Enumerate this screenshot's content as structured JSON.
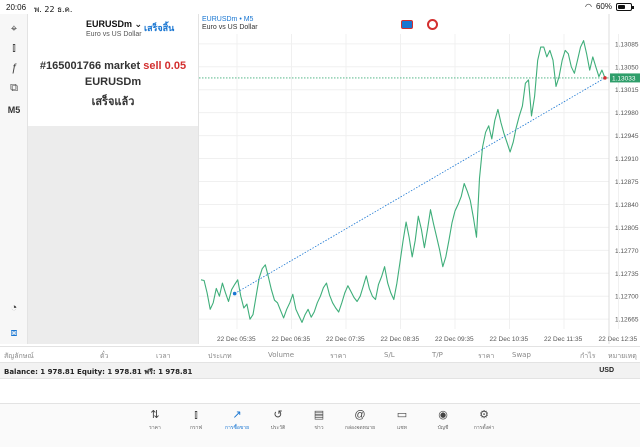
{
  "status": {
    "time": "20:06",
    "date": "พ. 22 ธ.ค.",
    "battery": "60%",
    "battery_level": 0.6
  },
  "left_tools": [
    {
      "name": "crosshair-icon",
      "glyph": "⌖"
    },
    {
      "name": "candles-icon",
      "glyph": "⫾"
    },
    {
      "name": "function-icon",
      "glyph": "ƒ"
    },
    {
      "name": "objects-icon",
      "glyph": "⧉"
    },
    {
      "name": "timeframe-button",
      "label": "M5"
    }
  ],
  "order_panel": {
    "symbol": "EURUSDm",
    "symbol_desc": "Euro vs US Dollar",
    "done_link": "เสร็จสิ้น",
    "ticket": "#165001766 market",
    "action": "sell 0.05",
    "symbol_line": "EURUSDm",
    "status_line": "เสร็จแล้ว"
  },
  "chart_header": {
    "symbol": "EURUSDm • M5",
    "desc": "Euro vs US Dollar"
  },
  "chart_data": {
    "type": "line",
    "symbol": "EURUSDm",
    "timeframe": "M5",
    "x_labels": [
      "22 Dec 05:35",
      "22 Dec 06:35",
      "22 Dec 07:35",
      "22 Dec 08:35",
      "22 Dec 09:35",
      "22 Dec 10:35",
      "22 Dec 11:35",
      "22 Dec 12:35"
    ],
    "y_ticks": [
      "1.13085",
      "1.13050",
      "1.13015",
      "1.12980",
      "1.12945",
      "1.12910",
      "1.12875",
      "1.12840",
      "1.12805",
      "1.12770",
      "1.12735",
      "1.12700",
      "1.12665"
    ],
    "ylim": [
      1.1265,
      1.131
    ],
    "current_price": "1.13033",
    "grid": true,
    "series": [
      {
        "values": [
          1.12725,
          1.12724,
          1.12705,
          1.1268,
          1.1269,
          1.12712,
          1.127,
          1.1272,
          1.12705,
          1.12692,
          1.1271,
          1.12718,
          1.12725,
          1.127,
          1.12682,
          1.12688,
          1.12665,
          1.12672,
          1.127,
          1.12728,
          1.12742,
          1.12748,
          1.1273,
          1.1271,
          1.12694,
          1.1269,
          1.12678,
          1.12667,
          1.1268,
          1.1269,
          1.12703,
          1.1268,
          1.1267,
          1.1266,
          1.12672,
          1.1268,
          1.12668,
          1.12676,
          1.1269,
          1.127,
          1.12713,
          1.1272,
          1.12702,
          1.1269,
          1.12682,
          1.12676,
          1.1269,
          1.12705,
          1.12716,
          1.12707,
          1.12698,
          1.12692,
          1.127,
          1.12715,
          1.12731,
          1.12712,
          1.127,
          1.12695,
          1.12718,
          1.1273,
          1.12745,
          1.1272,
          1.12705,
          1.12695,
          1.1272,
          1.12751,
          1.12784,
          1.12813,
          1.1279,
          1.1276,
          1.12785,
          1.12822,
          1.12802,
          1.12774,
          1.12802,
          1.12832,
          1.1281,
          1.1279,
          1.1277,
          1.12745,
          1.1276,
          1.12785,
          1.12812,
          1.1283,
          1.1284,
          1.12852,
          1.12872,
          1.1286,
          1.12846,
          1.1282,
          1.1279,
          1.1288,
          1.12928,
          1.1295,
          1.1296,
          1.1294,
          1.12968,
          1.12985,
          1.12965,
          1.12948,
          1.12934,
          1.1292,
          1.12935,
          1.12957,
          1.12975,
          1.1299,
          1.13025,
          1.1303,
          1.12975,
          1.13005,
          1.1306,
          1.1308,
          1.1308,
          1.13065,
          1.13075,
          1.1306,
          1.1302,
          1.13035,
          1.1306,
          1.13075,
          1.1307,
          1.1305,
          1.1304,
          1.1306,
          1.1308,
          1.1309,
          1.1307,
          1.13045,
          1.13065,
          1.1305,
          1.13035,
          1.13045,
          1.13033
        ]
      }
    ],
    "trade_line": {
      "from_index": 11,
      "from_price": 1.12704,
      "to_price": 1.13033
    }
  },
  "trade_columns": [
    "สัญลักษณ์",
    "ตั๋ว",
    "เวลา",
    "ประเภท",
    "Volume",
    "ราคา",
    "S/L",
    "T/P",
    "ราคา",
    "Swap",
    "กำไร",
    "หมายเหตุ"
  ],
  "balance": {
    "text": "Balance: 1 978.81  Equity: 1 978.81  ฟรี: 1 978.81",
    "currency": "USD"
  },
  "tabs": [
    {
      "name": "quotes",
      "label": "ราคา",
      "glyph": "⇅"
    },
    {
      "name": "chart",
      "label": "กราฟ",
      "glyph": "⫾"
    },
    {
      "name": "trade",
      "label": "การซื้อขาย",
      "glyph": "↗",
      "active": true
    },
    {
      "name": "history",
      "label": "ประวัติ",
      "glyph": "↺"
    },
    {
      "name": "news",
      "label": "ข่าว",
      "glyph": "▤"
    },
    {
      "name": "mailbox",
      "label": "กล่องจดหมาย",
      "glyph": "@"
    },
    {
      "name": "chat",
      "label": "แชท",
      "glyph": "▭"
    },
    {
      "name": "account",
      "label": "บัญชี",
      "glyph": "◉"
    },
    {
      "name": "settings",
      "label": "การตั้งค่า",
      "glyph": "⚙"
    }
  ]
}
